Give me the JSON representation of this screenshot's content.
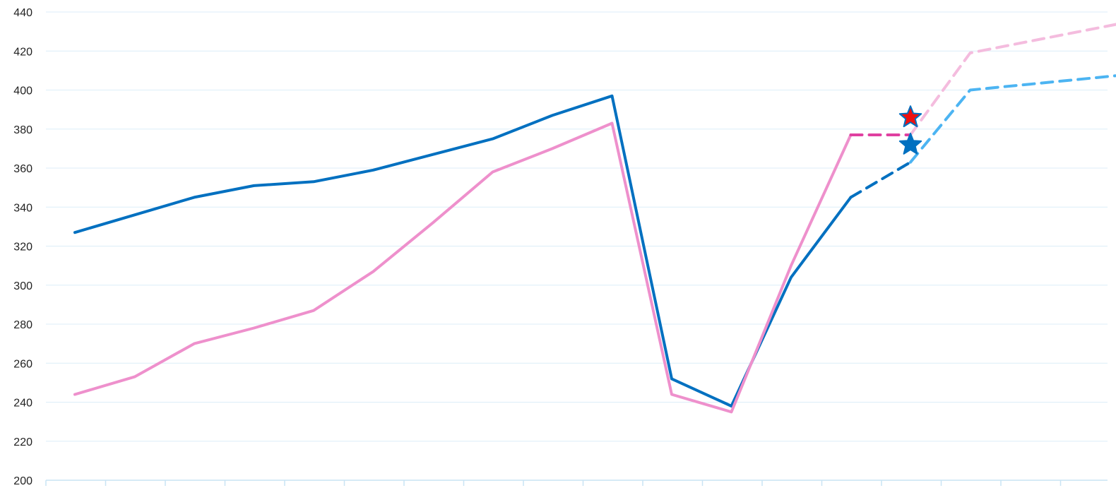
{
  "chart_data": {
    "type": "line",
    "title": "",
    "xlabel": "",
    "ylabel": "",
    "ylim": [
      200,
      440
    ],
    "yticks": [
      440,
      420,
      400,
      380,
      360,
      340,
      320,
      300,
      280,
      260,
      240,
      220,
      200
    ],
    "grid": true,
    "legend": "none",
    "x": [
      1,
      2,
      3,
      4,
      5,
      6,
      7,
      8,
      9,
      10,
      11,
      12,
      13,
      14,
      15,
      16,
      17,
      18,
      19
    ],
    "series": [
      {
        "color": "#0070C0",
        "style": "solid",
        "values": [
          327,
          336,
          345,
          351,
          353,
          359,
          367,
          375,
          387,
          397,
          252,
          238,
          304,
          345,
          null,
          null,
          null,
          null,
          null
        ]
      },
      {
        "color": "#0070C0",
        "style": "dashed",
        "values": [
          null,
          null,
          null,
          null,
          null,
          null,
          null,
          null,
          null,
          null,
          null,
          null,
          null,
          345,
          363,
          null,
          null,
          null,
          null
        ]
      },
      {
        "color": "#4CB4F2",
        "style": "dashed",
        "values": [
          null,
          null,
          null,
          null,
          null,
          null,
          null,
          null,
          null,
          null,
          null,
          null,
          null,
          null,
          363,
          400,
          403,
          406,
          409
        ]
      },
      {
        "color": "#EE90CC",
        "style": "solid",
        "values": [
          244,
          253,
          270,
          278,
          287,
          307,
          332,
          358,
          370,
          383,
          244,
          235,
          310,
          377,
          null,
          null,
          null,
          null,
          null
        ]
      },
      {
        "color": "#E040A0",
        "style": "dashed",
        "values": [
          null,
          null,
          null,
          null,
          null,
          null,
          null,
          null,
          null,
          null,
          null,
          null,
          null,
          377,
          377,
          null,
          null,
          null,
          null
        ]
      },
      {
        "color": "#F4BCDE",
        "style": "dashed",
        "values": [
          null,
          null,
          null,
          null,
          null,
          null,
          null,
          null,
          null,
          null,
          null,
          null,
          null,
          null,
          377,
          419,
          425,
          431,
          437
        ]
      }
    ],
    "markers": [
      {
        "shape": "star",
        "x": 15,
        "y": 386,
        "fill": "#EE1111",
        "stroke": "#0070C0"
      },
      {
        "shape": "star",
        "x": 15,
        "y": 372,
        "fill": "#0070C0",
        "stroke": "#0070C0"
      }
    ],
    "colors": {
      "grid": "#DCEEF8",
      "axis": "#C9E4F4",
      "tick_text": "#222222"
    }
  }
}
